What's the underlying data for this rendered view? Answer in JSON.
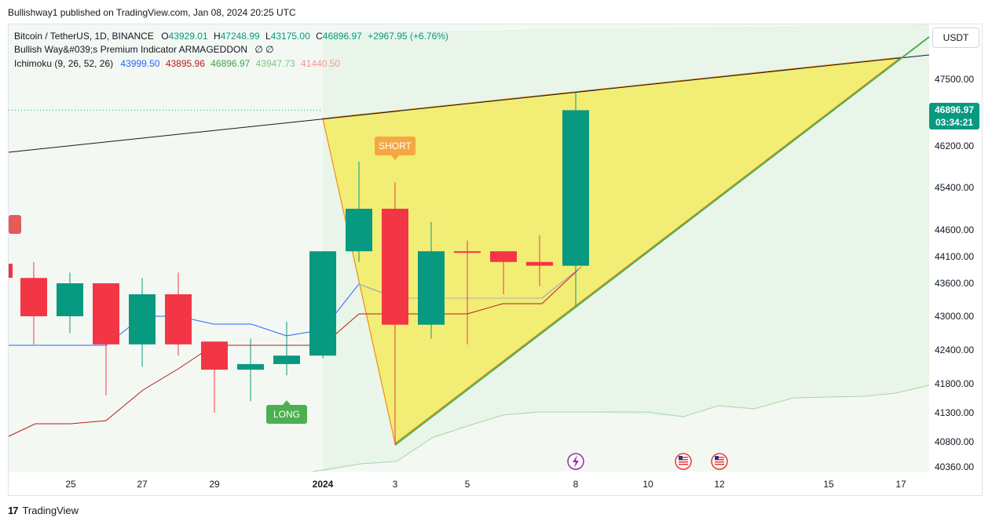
{
  "header": {
    "published": "Bullishway1 published on TradingView.com, Jan 08, 2024 20:25 UTC"
  },
  "legend": {
    "symbol": "Bitcoin / TetherUS, 1D, BINANCE",
    "o_label": "O",
    "o": "43929.01",
    "h_label": "H",
    "h": "47248.99",
    "l_label": "L",
    "l": "43175.00",
    "c_label": "C",
    "c": "46896.97",
    "change": "+2967.95 (+6.76%)",
    "indicator1": "Bullish Way&#039;s Premium Indicator ARMAGEDDON",
    "indicator1_values": "∅ ∅",
    "indicator2": "Ichimoku (9, 26, 52, 26)",
    "ichimoku_values": [
      "43999.50",
      "43895.96",
      "46896.97",
      "43947.73",
      "41440.50"
    ]
  },
  "unit_label": "USDT",
  "last_price": {
    "value": "46896.97",
    "countdown": "03:34:21"
  },
  "footer": {
    "brand": "TradingView"
  },
  "colors": {
    "up": "#089981",
    "down": "#f23645",
    "tenkan": "#2962ff",
    "kijun": "#b71c1c",
    "triangle_fill": "#f5e94f",
    "triangle_stroke": "#ef8e19",
    "support": "#4caf50",
    "resistance": "#131722",
    "cloud": "#e6f4e6",
    "short_label": "#f5a742",
    "long_label": "#4caf50"
  },
  "chart_data": {
    "type": "candlestick",
    "y_ticks": [
      "47500.00",
      "46200.00",
      "45400.00",
      "44600.00",
      "44100.00",
      "43600.00",
      "43000.00",
      "42400.00",
      "41800.00",
      "41300.00",
      "40800.00",
      "40360.00"
    ],
    "x_ticks": [
      "25",
      "27",
      "29",
      "2024",
      "3",
      "5",
      "8",
      "10",
      "12",
      "15",
      "17"
    ],
    "candles": [
      {
        "o": 43700,
        "h": 44000,
        "l": 42500,
        "c": 43000
      },
      {
        "o": 43000,
        "h": 43800,
        "l": 42700,
        "c": 43600
      },
      {
        "o": 43600,
        "h": 43600,
        "l": 41600,
        "c": 42500
      },
      {
        "o": 42500,
        "h": 43700,
        "l": 42100,
        "c": 43400
      },
      {
        "o": 43400,
        "h": 43800,
        "l": 42300,
        "c": 42500
      },
      {
        "o": 42550,
        "h": 42550,
        "l": 41300,
        "c": 42050
      },
      {
        "o": 42050,
        "h": 42600,
        "l": 41500,
        "c": 42150
      },
      {
        "o": 42150,
        "h": 42900,
        "l": 41950,
        "c": 42300
      },
      {
        "o": 42300,
        "h": 44200,
        "l": 42250,
        "c": 44200
      },
      {
        "o": 44200,
        "h": 45900,
        "l": 44000,
        "c": 45000
      },
      {
        "o": 45000,
        "h": 45500,
        "l": 40750,
        "c": 42850
      },
      {
        "o": 42850,
        "h": 44750,
        "l": 42600,
        "c": 44200
      },
      {
        "o": 44200,
        "h": 44400,
        "l": 42500,
        "c": 44180
      },
      {
        "o": 44200,
        "h": 44200,
        "l": 43400,
        "c": 44000
      },
      {
        "o": 44000,
        "h": 44500,
        "l": 43550,
        "c": 43929
      },
      {
        "o": 43929,
        "h": 47249,
        "l": 43175,
        "c": 46897
      }
    ],
    "labels": [
      {
        "text": "SHORT",
        "x_index": 10.0,
        "price": 46200
      },
      {
        "text": "LONG",
        "x_index": 7.0,
        "price": 41300
      }
    ]
  }
}
